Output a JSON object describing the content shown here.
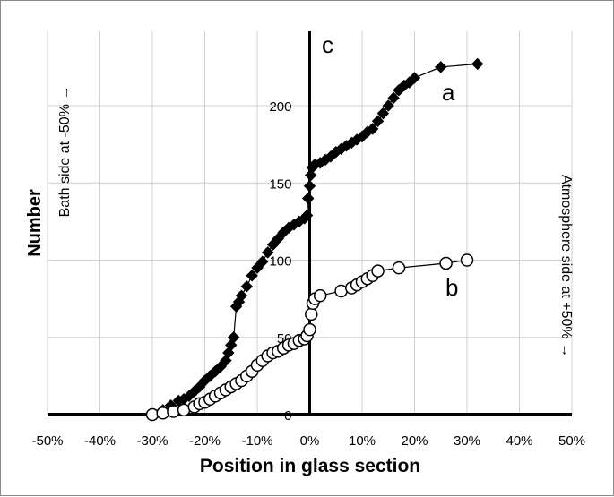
{
  "chart_data": {
    "type": "scatter",
    "xlabel": "Position in glass section",
    "ylabel": "Number",
    "x_ticks": [
      "-50%",
      "-40%",
      "-30%",
      "-20%",
      "-10%",
      "0%",
      "10%",
      "20%",
      "30%",
      "40%",
      "50%"
    ],
    "y_ticks": [
      "0",
      "50",
      "100",
      "150",
      "200"
    ],
    "xlim": [
      -50,
      50
    ],
    "ylim": [
      0,
      240
    ],
    "grid": true,
    "annotations": {
      "left_side": "Bath side at -50% →",
      "right_side": "Atmosphere side at +50% →",
      "center_marker": "c",
      "series_a_label": "a",
      "series_b_label": "b"
    },
    "series": [
      {
        "key": "a",
        "marker": "filled-diamond",
        "color": "#000000",
        "x": [
          -30,
          -28,
          -26.5,
          -25,
          -24,
          -23,
          -22,
          -21,
          -20,
          -19,
          -18,
          -17,
          -16,
          -15.5,
          -15,
          -14.5,
          -14,
          -13.5,
          -13,
          -12,
          -11,
          -10,
          -9,
          -8,
          -7,
          -6,
          -5,
          -4,
          -3,
          -2,
          -1,
          -0.5,
          -0.3,
          0,
          0.2,
          0.5,
          1,
          2,
          3,
          4,
          5,
          6,
          7,
          8,
          9,
          10,
          11,
          12,
          13,
          14,
          15,
          16,
          17,
          18,
          19,
          20,
          25,
          32
        ],
        "y": [
          0,
          3,
          6,
          9,
          10,
          12,
          15,
          18,
          22,
          25,
          28,
          31,
          35,
          40,
          45,
          50,
          70,
          73,
          77,
          83,
          90,
          95,
          99,
          105,
          110,
          114,
          118,
          121,
          123,
          125,
          127,
          129,
          140,
          148,
          155,
          160,
          162,
          163,
          165,
          167,
          170,
          172,
          174,
          176,
          178,
          180,
          183,
          185,
          190,
          195,
          200,
          205,
          210,
          213,
          215,
          218,
          225,
          227
        ]
      },
      {
        "key": "b",
        "marker": "open-circle",
        "color": "#000000",
        "x": [
          -30,
          -28,
          -26,
          -24,
          -22,
          -21,
          -20,
          -19,
          -18,
          -17,
          -16,
          -15,
          -14,
          -13,
          -12,
          -11,
          -10,
          -9,
          -8,
          -7,
          -6,
          -5,
          -4,
          -3,
          -2,
          -1,
          -0.5,
          0,
          0.3,
          0.6,
          1,
          2,
          6,
          8,
          9,
          10,
          11,
          12,
          13,
          17,
          26,
          30
        ],
        "y": [
          0,
          1,
          2,
          3,
          5,
          7,
          8,
          10,
          12,
          14,
          16,
          18,
          20,
          22,
          25,
          28,
          32,
          35,
          38,
          40,
          41,
          43,
          45,
          46,
          48,
          49,
          51,
          55,
          65,
          72,
          75,
          77,
          80,
          82,
          84,
          86,
          88,
          90,
          93,
          95,
          98,
          100
        ]
      }
    ]
  }
}
